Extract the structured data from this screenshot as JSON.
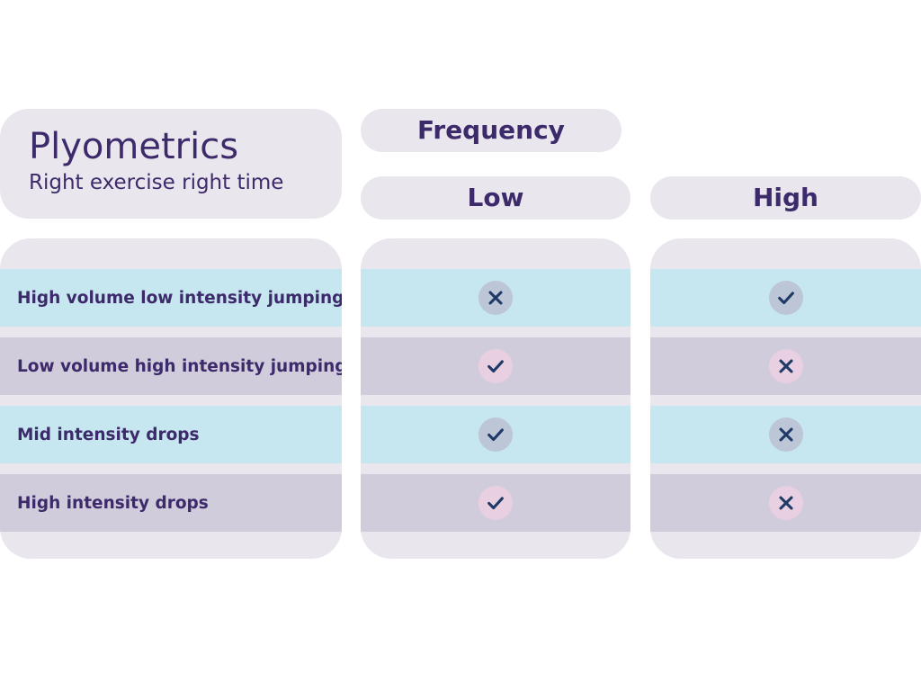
{
  "title": {
    "main": "Plyometrics",
    "sub": "Right exercise right time"
  },
  "header": {
    "group": "Frequency",
    "columns": [
      "Low",
      "High"
    ]
  },
  "rows": [
    {
      "label": "High volume low intensity jumping",
      "low": "cross",
      "high": "check",
      "band": "blue"
    },
    {
      "label": "Low volume high intensity jumping",
      "low": "check",
      "high": "cross",
      "band": "purple"
    },
    {
      "label": "Mid intensity drops",
      "low": "check",
      "high": "cross",
      "band": "blue"
    },
    {
      "label": "High intensity drops",
      "low": "check",
      "high": "cross",
      "band": "purple"
    }
  ],
  "icons": {
    "check": "check-icon",
    "cross": "cross-icon"
  },
  "colors": {
    "text": "#3d2a6b",
    "panel": "#e9e6ee",
    "band_blue": "#c6e6f0",
    "band_purple": "#d0ccdb",
    "mark": "#1f3a66"
  }
}
